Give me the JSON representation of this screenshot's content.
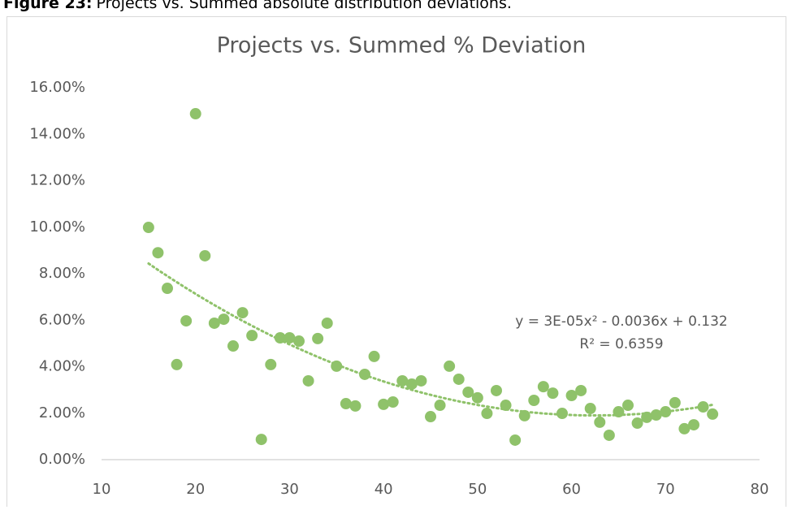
{
  "caption_label": "Figure 23:",
  "caption_text": "Projects vs. Summed absolute distribution deviations.",
  "chart_data": {
    "type": "scatter",
    "title": "Projects vs. Summed % Deviation",
    "color": "#8fc26a",
    "x": [
      15,
      16,
      17,
      18,
      19,
      20,
      21,
      22,
      23,
      24,
      25,
      26,
      27,
      28,
      29,
      30,
      31,
      32,
      33,
      34,
      35,
      36,
      37,
      38,
      39,
      40,
      41,
      42,
      43,
      44,
      45,
      46,
      47,
      48,
      49,
      50,
      51,
      52,
      53,
      54,
      55,
      56,
      57,
      58,
      59,
      60,
      61,
      62,
      63,
      64,
      65,
      66,
      67,
      68,
      69,
      70,
      71,
      72,
      73,
      74,
      75
    ],
    "values": [
      9.99,
      8.9,
      7.37,
      4.09,
      5.97,
      14.88,
      8.77,
      5.87,
      6.04,
      4.89,
      6.32,
      5.34,
      0.87,
      4.09,
      5.24,
      5.24,
      5.1,
      3.39,
      5.21,
      5.87,
      4.02,
      2.41,
      2.31,
      3.67,
      4.44,
      2.38,
      2.48,
      3.39,
      3.25,
      3.39,
      1.85,
      2.34,
      4.02,
      3.46,
      2.9,
      2.66,
      1.99,
      2.97,
      2.34,
      0.84,
      1.89,
      2.55,
      3.14,
      2.86,
      1.99,
      2.76,
      2.97,
      2.2,
      1.61,
      1.05,
      2.06,
      2.34,
      1.57,
      1.82,
      1.92,
      2.06,
      2.45,
      1.33,
      1.5,
      2.27,
      1.96
    ],
    "xlim": [
      10,
      80
    ],
    "xticks": [
      10,
      20,
      30,
      40,
      50,
      60,
      70,
      80
    ],
    "ylim": [
      0,
      16
    ],
    "yticks": [
      {
        "value": 0,
        "label": "0.00%"
      },
      {
        "value": 2,
        "label": "2.00%"
      },
      {
        "value": 4,
        "label": "4.00%"
      },
      {
        "value": 6,
        "label": "6.00%"
      },
      {
        "value": 8,
        "label": "8.00%"
      },
      {
        "value": 10,
        "label": "10.00%"
      },
      {
        "value": 12,
        "label": "12.00%"
      },
      {
        "value": 14,
        "label": "14.00%"
      },
      {
        "value": 16,
        "label": "16.00%"
      }
    ],
    "grid": false,
    "trendline": {
      "type": "polynomial",
      "order": 2,
      "equation": "y = 3E-05x² - 0.0036x + 0.132",
      "r_squared": "R² = 0.6359"
    }
  }
}
